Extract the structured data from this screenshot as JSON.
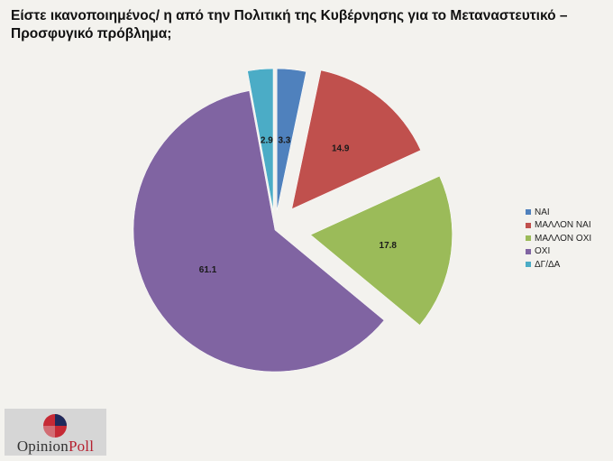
{
  "chart_data": {
    "type": "pie",
    "title": "Είστε ικανοποιημένος/ η από την Πολιτική της Κυβέρνησης για το Μεταναστευτικό – Προσφυγικό  πρόβλημα;",
    "exploded": true,
    "categories": [
      "ΝΑΙ",
      "ΜΑΛΛΟΝ ΝΑΙ",
      "ΜΑΛΛΟΝ ΟΧΙ",
      "ΟΧΙ",
      "ΔΓ/ΔΑ"
    ],
    "values": [
      3.3,
      14.9,
      17.8,
      61.1,
      2.9
    ],
    "data_labels": [
      "3.3",
      "14.9",
      "17.8",
      "61.1",
      "2.9"
    ],
    "colors": [
      "#4f81bd",
      "#c0504d",
      "#9bbb59",
      "#8064a2",
      "#4bacc6"
    ],
    "legend_position": "right"
  },
  "logo": {
    "text_main": "Opinion",
    "text_accent": "Poll"
  }
}
